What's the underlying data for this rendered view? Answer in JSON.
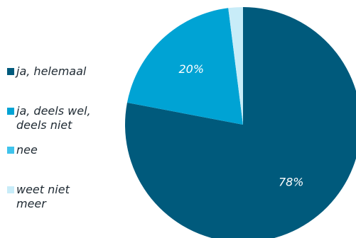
{
  "chart_data": {
    "type": "pie",
    "categories": [
      "ja, helemaal",
      "ja, deels wel, deels niet",
      "nee",
      "weet niet meer"
    ],
    "values": [
      78,
      20,
      0,
      2
    ],
    "data_labels": [
      "78%",
      "20%",
      "",
      ""
    ],
    "colors": [
      "#005a7c",
      "#00a3d4",
      "#3fc3ec",
      "#c8ecf8"
    ],
    "legend_position": "left",
    "title": ""
  },
  "legend": {
    "items": [
      {
        "lines": [
          "ja, helemaal"
        ],
        "color": "#005a7c"
      },
      {
        "lines": [
          "ja, deels wel,",
          "deels niet"
        ],
        "color": "#00a3d4"
      },
      {
        "lines": [
          "nee"
        ],
        "color": "#3fc3ec"
      },
      {
        "lines": [
          "weet niet",
          "meer"
        ],
        "color": "#c8ecf8"
      }
    ]
  }
}
